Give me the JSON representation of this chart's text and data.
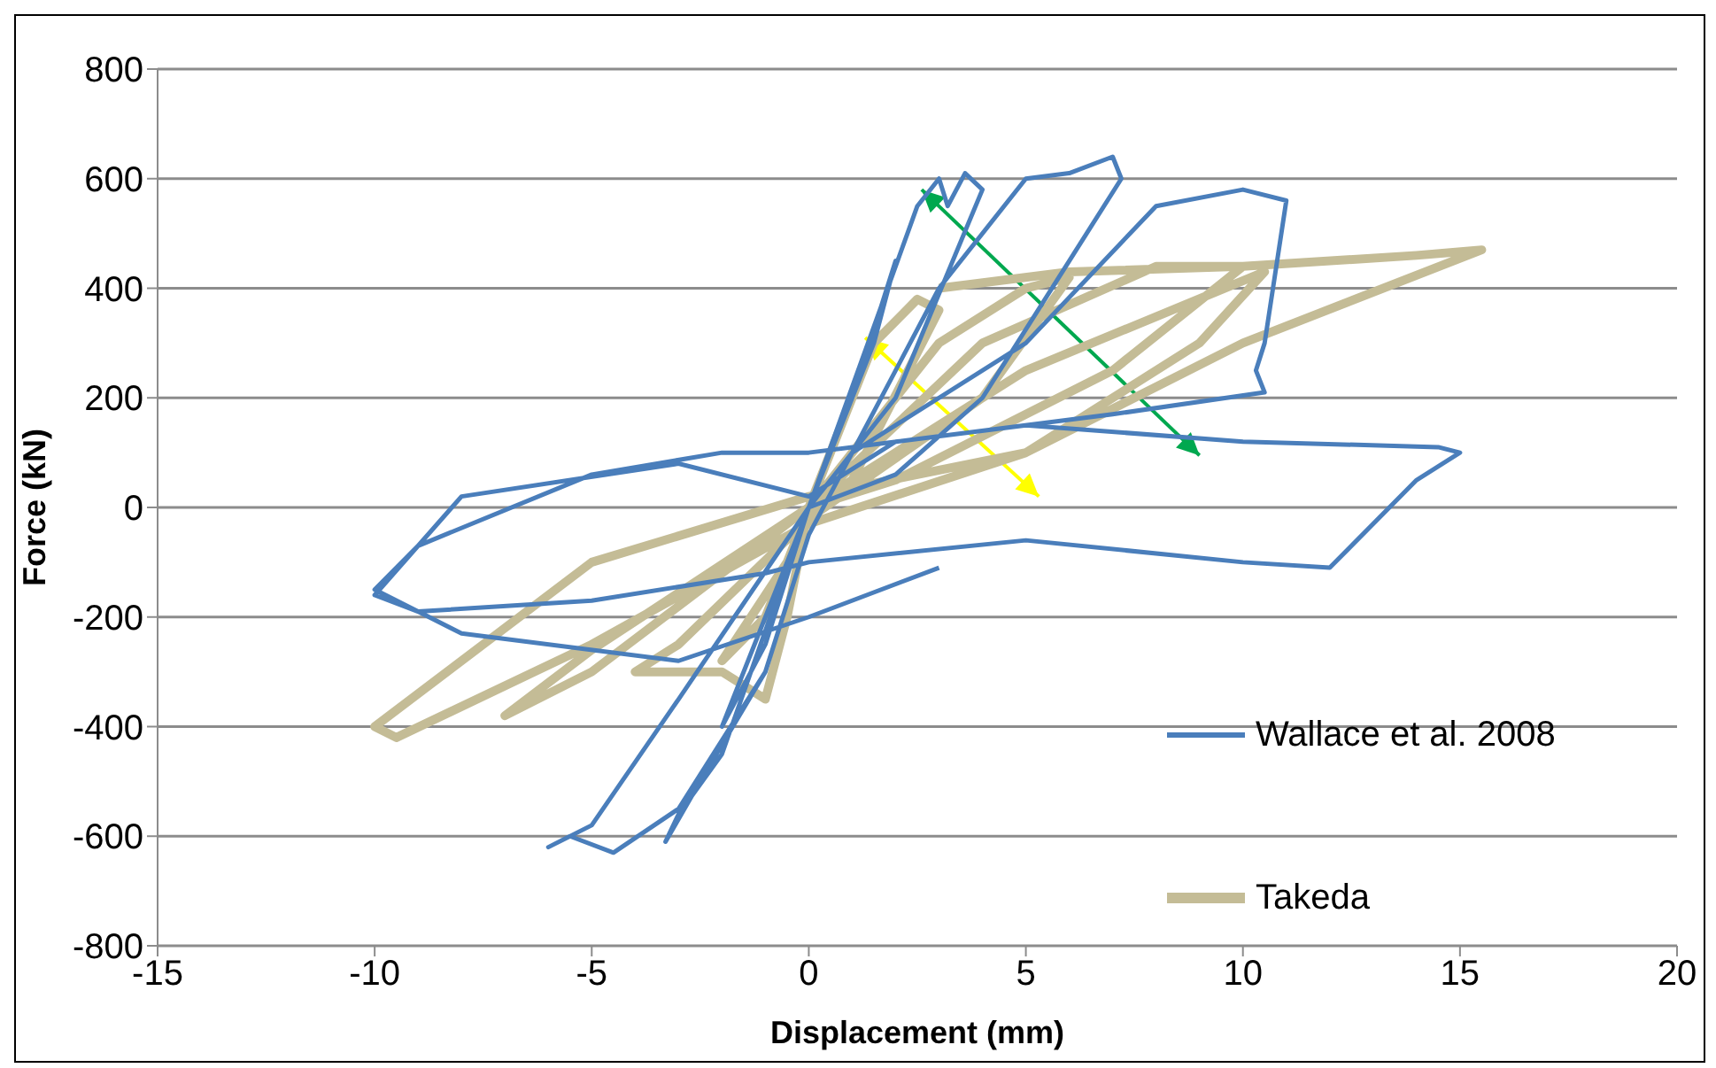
{
  "chart_data": {
    "type": "line",
    "xlabel": "Displacement (mm)",
    "ylabel": "Force (kN)",
    "xlim": [
      -15,
      20
    ],
    "xticks": [
      -15,
      -10,
      -5,
      0,
      5,
      10,
      15,
      20
    ],
    "ylim": [
      -800,
      800
    ],
    "yticks": [
      -800,
      -600,
      -400,
      -200,
      0,
      200,
      400,
      600,
      800
    ],
    "grid": "y",
    "legend": "bottom right",
    "marker": "none",
    "line_style": "solid",
    "series": [
      {
        "name": "Wallace et al. 2008",
        "color": "#4a7ebb",
        "x": [
          0,
          1,
          2,
          1.5,
          0,
          -1,
          -2,
          -1,
          0,
          2.5,
          3,
          3.2,
          3.6,
          4,
          2,
          0,
          -2,
          -3,
          -3.3,
          -2.5,
          -1,
          0,
          3,
          5,
          6,
          7,
          7.2,
          6,
          4,
          2,
          0,
          -3,
          -5,
          -6,
          -5.5,
          -4.5,
          -3,
          -1,
          0,
          1,
          5,
          8,
          10,
          11,
          10.5,
          10.3,
          10.5,
          7,
          2,
          0,
          -3,
          -8,
          -10,
          -9,
          -5,
          -1,
          0,
          5,
          10,
          12,
          14,
          15,
          14.5,
          10,
          5,
          0,
          -2,
          -5,
          -9,
          -10,
          -8,
          -3,
          0,
          3
        ],
        "values": [
          0,
          200,
          450,
          300,
          0,
          -200,
          -400,
          -250,
          0,
          550,
          600,
          550,
          610,
          580,
          200,
          0,
          -450,
          -560,
          -610,
          -500,
          -300,
          -50,
          400,
          600,
          610,
          640,
          600,
          450,
          200,
          60,
          0,
          -350,
          -580,
          -620,
          -600,
          -630,
          -550,
          -300,
          -50,
          100,
          300,
          550,
          580,
          560,
          300,
          250,
          210,
          170,
          120,
          20,
          80,
          20,
          -160,
          -190,
          -170,
          -120,
          -100,
          -60,
          -100,
          -110,
          50,
          100,
          110,
          120,
          150,
          100,
          100,
          60,
          -70,
          -150,
          -230,
          -280,
          -200,
          -110
        ]
      },
      {
        "name": "Takeda",
        "color": "#c4bc96",
        "x": [
          0,
          1.5,
          2.5,
          3,
          1,
          0,
          -1,
          -2,
          -0.5,
          0,
          3,
          5,
          6,
          4,
          0,
          -3,
          -4,
          -2,
          -1,
          -0.5,
          0,
          4,
          8,
          10,
          7,
          2,
          0,
          -5,
          -7,
          -5,
          0,
          5,
          10.5,
          9,
          5,
          0,
          -5,
          -10,
          -9.5,
          -5,
          0,
          5,
          10,
          15.5,
          14,
          10,
          6,
          3
        ],
        "values": [
          0,
          300,
          380,
          360,
          50,
          0,
          -200,
          -280,
          -100,
          0,
          300,
          400,
          420,
          200,
          -20,
          -250,
          -300,
          -300,
          -350,
          -200,
          0,
          300,
          440,
          440,
          250,
          50,
          0,
          -300,
          -380,
          -260,
          0,
          250,
          430,
          300,
          100,
          20,
          -100,
          -400,
          -420,
          -250,
          -30,
          100,
          300,
          470,
          460,
          440,
          430,
          400
        ]
      }
    ]
  }
}
